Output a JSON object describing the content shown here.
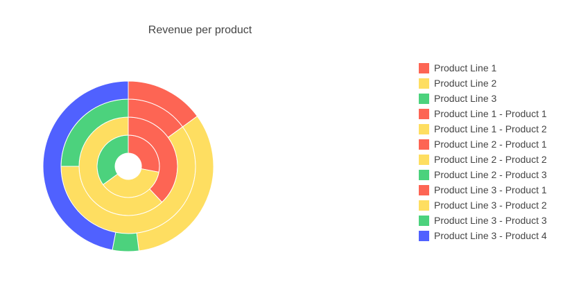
{
  "chart_data": {
    "type": "pie",
    "title": "Revenue per product",
    "colors": {
      "red": "#fd6554",
      "yellow": "#fede61",
      "green": "#4cd27d",
      "blue": "#5061ff"
    },
    "rings": [
      {
        "ring": "innermost",
        "slices": [
          {
            "label": "Product Line 1",
            "value": 28,
            "color": "#fd6554"
          },
          {
            "label": "Product Line 2",
            "value": 37,
            "color": "#fede61"
          },
          {
            "label": "Product Line 3",
            "value": 35,
            "color": "#4cd27d"
          }
        ]
      },
      {
        "ring": "second",
        "slices": [
          {
            "label": "Product Line 1 - Product 1",
            "value": 38,
            "color": "#fd6554"
          },
          {
            "label": "Product Line 1 - Product 2",
            "value": 62,
            "color": "#fede61"
          }
        ]
      },
      {
        "ring": "third",
        "slices": [
          {
            "label": "Product Line 2 - Product 1",
            "value": 15,
            "color": "#fd6554"
          },
          {
            "label": "Product Line 2 - Product 2",
            "value": 60,
            "color": "#fede61"
          },
          {
            "label": "Product Line 2 - Product 3",
            "value": 25,
            "color": "#4cd27d"
          }
        ]
      },
      {
        "ring": "outermost",
        "slices": [
          {
            "label": "Product Line 3 - Product 1",
            "value": 15,
            "color": "#fd6554"
          },
          {
            "label": "Product Line 3 - Product 2",
            "value": 33,
            "color": "#fede61"
          },
          {
            "label": "Product Line 3 - Product 3",
            "value": 5,
            "color": "#4cd27d"
          },
          {
            "label": "Product Line 3 - Product 4",
            "value": 47,
            "color": "#5061ff"
          }
        ]
      }
    ],
    "legend": {
      "placement": "right",
      "entries": [
        {
          "label": "Product Line 1",
          "color": "#fd6554"
        },
        {
          "label": "Product Line 2",
          "color": "#fede61"
        },
        {
          "label": "Product Line 3",
          "color": "#4cd27d"
        },
        {
          "label": "Product Line 1 - Product 1",
          "color": "#fd6554"
        },
        {
          "label": "Product Line 1 - Product 2",
          "color": "#fede61"
        },
        {
          "label": "Product Line 2 - Product 1",
          "color": "#fd6554"
        },
        {
          "label": "Product Line 2 - Product 2",
          "color": "#fede61"
        },
        {
          "label": "Product Line 2 - Product 3",
          "color": "#4cd27d"
        },
        {
          "label": "Product Line 3 - Product 1",
          "color": "#fd6554"
        },
        {
          "label": "Product Line 3 - Product 2",
          "color": "#fede61"
        },
        {
          "label": "Product Line 3 - Product 3",
          "color": "#4cd27d"
        },
        {
          "label": "Product Line 3 - Product 4",
          "color": "#5061ff"
        }
      ]
    }
  }
}
